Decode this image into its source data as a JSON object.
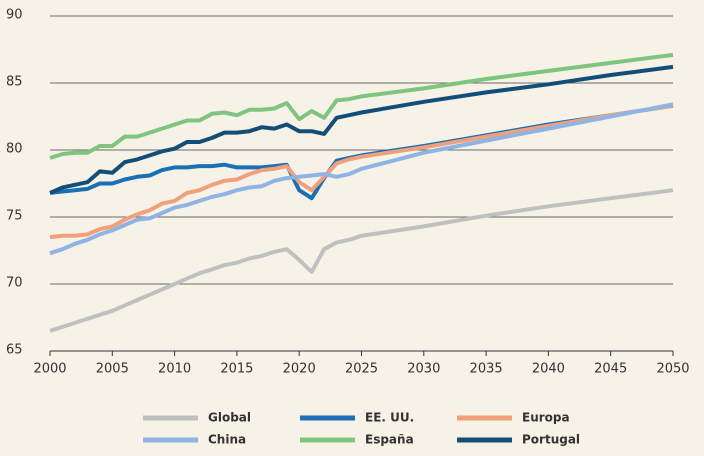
{
  "chart_data": {
    "type": "line",
    "x": [
      2000,
      2001,
      2002,
      2003,
      2004,
      2005,
      2006,
      2007,
      2008,
      2009,
      2010,
      2011,
      2012,
      2013,
      2014,
      2015,
      2016,
      2017,
      2018,
      2019,
      2020,
      2021,
      2022,
      2023,
      2024,
      2025,
      2030,
      2035,
      2040,
      2045,
      2050
    ],
    "xlim": [
      2000,
      2050
    ],
    "xticks": [
      2000,
      2005,
      2010,
      2015,
      2020,
      2025,
      2030,
      2035,
      2040,
      2045,
      2050
    ],
    "ylim": [
      65,
      90
    ],
    "yticks": [
      65,
      70,
      75,
      80,
      85,
      90
    ],
    "grid": true,
    "legend": "bottom",
    "series": [
      {
        "name": "Global",
        "color": "#bfc0bf",
        "values": [
          66.5,
          66.8,
          67.1,
          67.4,
          67.7,
          68.0,
          68.4,
          68.8,
          69.2,
          69.6,
          70.0,
          70.4,
          70.8,
          71.1,
          71.4,
          71.6,
          71.9,
          72.1,
          72.4,
          72.6,
          71.8,
          70.9,
          72.6,
          73.1,
          73.3,
          73.6,
          74.3,
          75.1,
          75.8,
          76.4,
          77.0
        ]
      },
      {
        "name": "EE. UU.",
        "color": "#1a6fb5",
        "values": [
          76.8,
          76.9,
          77.0,
          77.1,
          77.5,
          77.5,
          77.8,
          78.0,
          78.1,
          78.5,
          78.7,
          78.7,
          78.8,
          78.8,
          78.9,
          78.7,
          78.7,
          78.7,
          78.8,
          78.9,
          77.0,
          76.4,
          77.9,
          79.2,
          79.4,
          79.6,
          80.3,
          81.1,
          81.9,
          82.6,
          83.3
        ]
      },
      {
        "name": "Europa",
        "color": "#f0a07a",
        "values": [
          73.5,
          73.6,
          73.6,
          73.7,
          74.1,
          74.3,
          74.8,
          75.2,
          75.5,
          76.0,
          76.2,
          76.8,
          77.0,
          77.4,
          77.7,
          77.8,
          78.2,
          78.5,
          78.6,
          78.8,
          77.6,
          77.0,
          78.0,
          79.0,
          79.3,
          79.5,
          80.2,
          81.0,
          81.8,
          82.6,
          83.3
        ]
      },
      {
        "name": "China",
        "color": "#8fb4e3",
        "values": [
          72.3,
          72.6,
          73.0,
          73.3,
          73.7,
          74.0,
          74.4,
          74.8,
          74.9,
          75.3,
          75.7,
          75.9,
          76.2,
          76.5,
          76.7,
          77.0,
          77.2,
          77.3,
          77.7,
          77.9,
          78.0,
          78.1,
          78.2,
          78.0,
          78.2,
          78.6,
          79.8,
          80.7,
          81.6,
          82.5,
          83.4
        ]
      },
      {
        "name": "España",
        "color": "#7fc47f",
        "values": [
          79.4,
          79.7,
          79.8,
          79.8,
          80.3,
          80.3,
          81.0,
          81.0,
          81.3,
          81.6,
          81.9,
          82.2,
          82.2,
          82.7,
          82.8,
          82.6,
          83.0,
          83.0,
          83.1,
          83.5,
          82.3,
          82.9,
          82.4,
          83.7,
          83.8,
          84.0,
          84.6,
          85.3,
          85.9,
          86.5,
          87.1
        ]
      },
      {
        "name": "Portugal",
        "color": "#134e78",
        "values": [
          76.8,
          77.2,
          77.4,
          77.6,
          78.4,
          78.3,
          79.1,
          79.3,
          79.6,
          79.9,
          80.1,
          80.6,
          80.6,
          80.9,
          81.3,
          81.3,
          81.4,
          81.7,
          81.6,
          81.9,
          81.4,
          81.4,
          81.2,
          82.4,
          82.6,
          82.8,
          83.6,
          84.3,
          84.9,
          85.6,
          86.2
        ]
      }
    ]
  }
}
